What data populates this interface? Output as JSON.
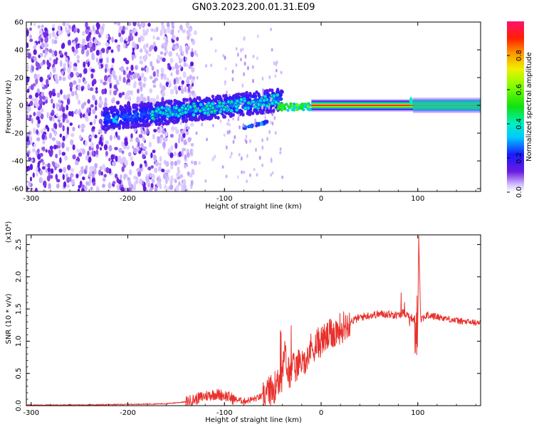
{
  "title": "GN03.2023.200.01.31.E09",
  "colors": {
    "snr_line": "#e8312c",
    "spectrogram_ridge": "#ff2a00",
    "noise_purple": "#6a1be0"
  },
  "chart_data": [
    {
      "type": "heatmap",
      "xlabel": "Height of straight line (km)",
      "ylabel": "Frequency (Hz)",
      "xlim": [
        -305,
        165
      ],
      "ylim": [
        -62,
        60
      ],
      "xticks": [
        -300,
        -200,
        -100,
        0,
        100
      ],
      "xtick_labels": [
        "-300",
        "-200",
        "-100",
        "0",
        "100"
      ],
      "yticks": [
        -60,
        -40,
        -20,
        0,
        20,
        40,
        60
      ],
      "ytick_labels": [
        "-60",
        "-40",
        "-20",
        "0",
        "20",
        "40",
        "60"
      ],
      "colorbar": {
        "label": "Normalized spectral amplitude",
        "range": [
          0,
          1
        ],
        "ticks": [
          0.0,
          0.2,
          0.4,
          0.6,
          0.8
        ],
        "tick_labels": [
          "0.0",
          "0.2",
          "0.4",
          "0.6",
          "0.8"
        ],
        "colormap": "rainbow"
      },
      "features": [
        {
          "kind": "scattered-noise",
          "x_range": [
            -305,
            -150
          ],
          "amplitude": 0.1
        },
        {
          "kind": "rising-branch",
          "x_range": [
            -225,
            -40
          ],
          "freq_range": [
            -15,
            10
          ],
          "amplitude": 0.35
        },
        {
          "kind": "lower-branch",
          "x_range": [
            -80,
            -55
          ],
          "freq_range": [
            -17,
            -12
          ],
          "amplitude": 0.3
        },
        {
          "kind": "transition",
          "x_range": [
            -45,
            -10
          ],
          "freq_range": [
            -4,
            3
          ],
          "amplitude": 0.5
        },
        {
          "kind": "steady-ridge",
          "x_range": [
            -10,
            165
          ],
          "freq": 0,
          "amplitude": 0.95
        },
        {
          "kind": "spike",
          "x": 93,
          "freq_range": [
            -2,
            8
          ],
          "amplitude": 0.6
        }
      ],
      "grid": false
    },
    {
      "type": "line",
      "xlabel": "Height of straight line (km)",
      "ylabel": "SNR (10 * v/v)",
      "yscale_label": "(x10⁴)",
      "xlim": [
        -305,
        165
      ],
      "ylim": [
        0,
        2.65
      ],
      "xticks": [
        -300,
        -200,
        -100,
        0,
        100
      ],
      "xtick_labels": [
        "-300",
        "-200",
        "-100",
        "0",
        "100"
      ],
      "yticks": [
        0,
        0.5,
        1.0,
        1.5,
        2.0,
        2.5
      ],
      "ytick_labels": [
        "0.0",
        "0.5",
        "1.0",
        "1.5",
        "2.0",
        "2.5"
      ],
      "series": [
        {
          "x": [
            -305,
            -250,
            -200,
            -160,
            -140,
            -130,
            -120,
            -110,
            -100,
            -90,
            -80,
            -70,
            -60,
            -55,
            -50,
            -45,
            -40,
            -38,
            -35,
            -30,
            -25,
            -20,
            -15,
            -10,
            -5,
            0,
            5,
            10,
            15,
            20,
            25,
            30,
            40,
            50,
            60,
            70,
            80,
            85,
            90,
            95,
            100,
            101,
            103,
            110,
            120,
            130,
            140,
            150,
            165
          ],
          "y": [
            0.01,
            0.01,
            0.02,
            0.03,
            0.06,
            0.1,
            0.15,
            0.18,
            0.16,
            0.1,
            0.07,
            0.1,
            0.15,
            0.2,
            0.25,
            0.35,
            0.45,
            0.9,
            0.5,
            0.55,
            0.6,
            0.7,
            0.8,
            0.9,
            0.95,
            1.0,
            1.05,
            1.1,
            1.15,
            1.2,
            1.25,
            1.3,
            1.37,
            1.4,
            1.42,
            1.42,
            1.4,
            1.45,
            1.4,
            1.35,
            1.32,
            2.6,
            1.35,
            1.4,
            1.38,
            1.35,
            1.32,
            1.3,
            1.28
          ]
        }
      ],
      "grid": false
    }
  ]
}
